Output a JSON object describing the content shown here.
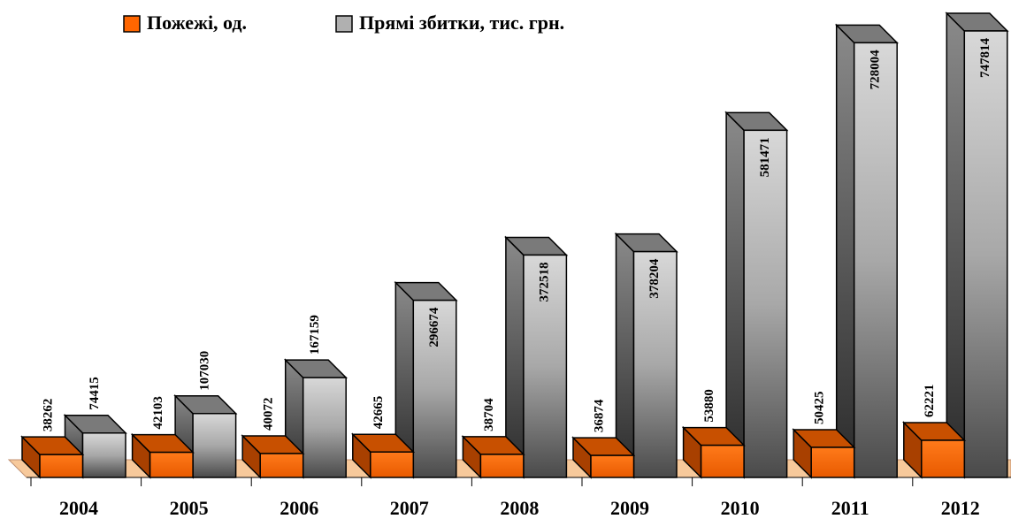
{
  "chart_data": {
    "type": "bar3d",
    "categories": [
      "2004",
      "2005",
      "2006",
      "2007",
      "2008",
      "2009",
      "2010",
      "2011",
      "2012"
    ],
    "series": [
      {
        "name": "Пожежі, од.",
        "color": "#ff6600",
        "values": [
          38262,
          42103,
          40072,
          42665,
          38704,
          36874,
          53880,
          50425,
          62221
        ]
      },
      {
        "name": "Прямі збитки, тис. грн.",
        "color": "#b0b0b0",
        "values": [
          74415,
          107030,
          167159,
          296674,
          372518,
          378204,
          581471,
          728004,
          747814
        ]
      }
    ]
  }
}
